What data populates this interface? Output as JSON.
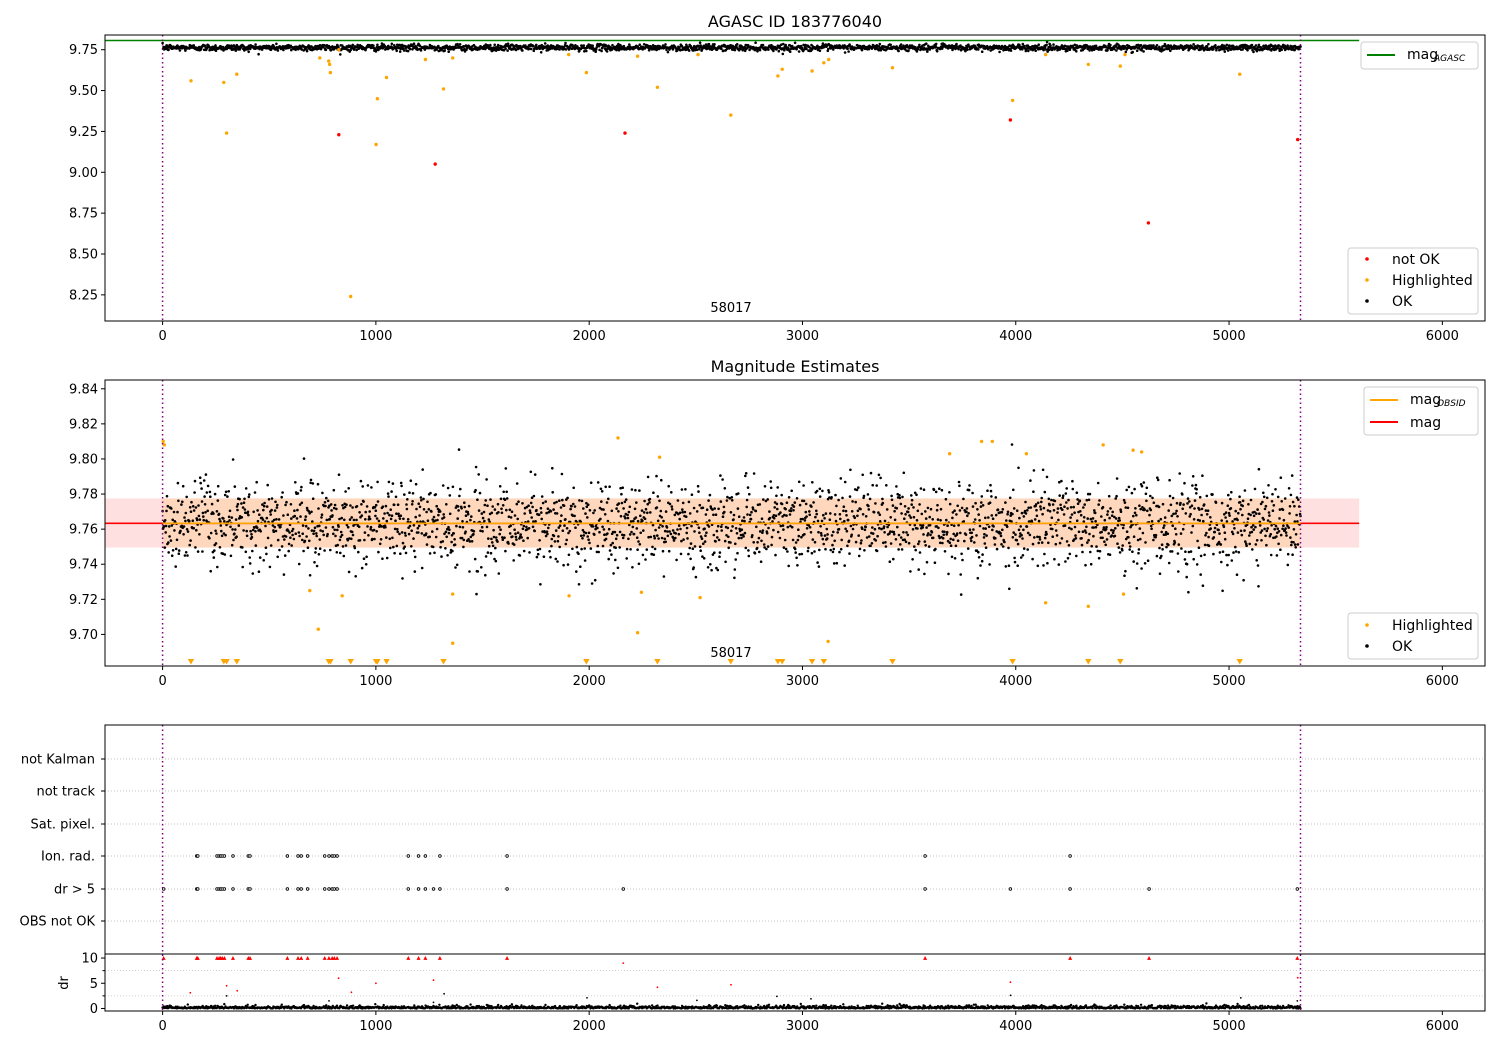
{
  "chart_data": [
    {
      "type": "scatter",
      "title": "AGASC ID 183776040",
      "xlim": [
        -270,
        6200
      ],
      "ylim": [
        8.09,
        9.84
      ],
      "xticks": [
        0,
        1000,
        2000,
        3000,
        4000,
        5000,
        6000
      ],
      "yticks": [
        8.25,
        8.5,
        8.75,
        9.0,
        9.25,
        9.5,
        9.75
      ],
      "ytick_labels": [
        "8.25",
        "8.50",
        "8.75",
        "9.00",
        "9.25",
        "9.50",
        "9.75"
      ],
      "grid": false,
      "obsid_bounds": [
        0,
        5335
      ],
      "obsid_label": {
        "text": "58017",
        "x": 2667
      },
      "reference_lines": [
        {
          "name": "mag",
          "subscript": "AGASC",
          "y": 9.806,
          "x": [
            -270,
            5610
          ],
          "color": "#008000"
        }
      ],
      "ok_band": {
        "x": [
          0,
          5335
        ],
        "center": 9.763,
        "spread": 0.01,
        "color": "#000000"
      },
      "series": [
        {
          "name": "not OK",
          "color": "#ff0000",
          "points": [
            [
              826,
              9.23
            ],
            [
              1278,
              9.05
            ],
            [
              2168,
              9.24
            ],
            [
              3975,
              9.32
            ],
            [
              4622,
              8.69
            ],
            [
              5322,
              9.2
            ]
          ]
        },
        {
          "name": "Highlighted",
          "color": "#ffa500",
          "points": [
            [
              133,
              9.56
            ],
            [
              287,
              9.55
            ],
            [
              300,
              9.24
            ],
            [
              348,
              9.6
            ],
            [
              737,
              9.7
            ],
            [
              779,
              9.68
            ],
            [
              783,
              9.66
            ],
            [
              787,
              9.61
            ],
            [
              826,
              9.75
            ],
            [
              882,
              8.24
            ],
            [
              1001,
              9.17
            ],
            [
              1007,
              9.45
            ],
            [
              1050,
              9.58
            ],
            [
              1232,
              9.69
            ],
            [
              1317,
              9.51
            ],
            [
              1360,
              9.7
            ],
            [
              1904,
              9.72
            ],
            [
              1987,
              9.61
            ],
            [
              2227,
              9.71
            ],
            [
              2320,
              9.52
            ],
            [
              2510,
              9.72
            ],
            [
              2664,
              9.35
            ],
            [
              2885,
              9.59
            ],
            [
              2905,
              9.63
            ],
            [
              3045,
              9.62
            ],
            [
              3100,
              9.67
            ],
            [
              3123,
              9.69
            ],
            [
              3422,
              9.64
            ],
            [
              3985,
              9.44
            ],
            [
              4140,
              9.72
            ],
            [
              4340,
              9.66
            ],
            [
              4490,
              9.65
            ],
            [
              4512,
              9.72
            ],
            [
              5050,
              9.6
            ]
          ]
        }
      ],
      "legends": [
        {
          "position": "top-right",
          "entries": [
            {
              "name": "mag",
              "subscript": "AGASC",
              "kind": "line",
              "color": "#008000"
            }
          ]
        },
        {
          "position": "lower-right",
          "entries": [
            {
              "name": "not OK",
              "kind": "marker",
              "color": "#ff0000"
            },
            {
              "name": "Highlighted",
              "kind": "marker",
              "color": "#ffa500"
            },
            {
              "name": "OK",
              "kind": "marker",
              "color": "#000000"
            }
          ]
        }
      ]
    },
    {
      "type": "scatter",
      "title": "Magnitude Estimates",
      "xlim": [
        -270,
        6200
      ],
      "ylim": [
        9.682,
        9.845
      ],
      "xticks": [
        0,
        1000,
        2000,
        3000,
        4000,
        5000,
        6000
      ],
      "yticks": [
        9.7,
        9.72,
        9.74,
        9.76,
        9.78,
        9.8,
        9.82,
        9.84
      ],
      "ytick_labels": [
        "9.70",
        "9.72",
        "9.74",
        "9.76",
        "9.78",
        "9.80",
        "9.82",
        "9.84"
      ],
      "grid": false,
      "obsid_bounds": [
        0,
        5335
      ],
      "obsid_label": {
        "text": "58017",
        "x": 2667
      },
      "bands": [
        {
          "x": [
            -270,
            5610
          ],
          "y": [
            9.7495,
            9.7775
          ],
          "color": "#ff0000",
          "opacity": 0.12
        },
        {
          "x": [
            0,
            5335
          ],
          "y": [
            9.7495,
            9.7775
          ],
          "color": "#ffa500",
          "opacity": 0.16
        }
      ],
      "reference_lines": [
        {
          "name": "mag",
          "y": 9.7633,
          "x": [
            -270,
            5610
          ],
          "color": "#ff0000"
        },
        {
          "name": "mag",
          "subscript": "OBSID",
          "y": 9.7633,
          "x": [
            0,
            5335
          ],
          "color": "#ffa500"
        }
      ],
      "ok_band": {
        "x": [
          0,
          5335
        ],
        "center": 9.763,
        "spread": 0.012,
        "color": "#000000"
      },
      "series": [
        {
          "name": "Highlighted",
          "color": "#ffa500",
          "points": [
            [
              3,
              9.81
            ],
            [
              8,
              9.808
            ],
            [
              690,
              9.725
            ],
            [
              730,
              9.703
            ],
            [
              842,
              9.722
            ],
            [
              1360,
              9.723
            ],
            [
              1360,
              9.695
            ],
            [
              1906,
              9.722
            ],
            [
              2135,
              9.812
            ],
            [
              2227,
              9.701
            ],
            [
              2245,
              9.724
            ],
            [
              2330,
              9.801
            ],
            [
              2520,
              9.721
            ],
            [
              3120,
              9.696
            ],
            [
              3690,
              9.803
            ],
            [
              3840,
              9.81
            ],
            [
              3890,
              9.81
            ],
            [
              4050,
              9.803
            ],
            [
              4140,
              9.718
            ],
            [
              4340,
              9.716
            ],
            [
              4410,
              9.808
            ],
            [
              4505,
              9.723
            ],
            [
              4550,
              9.805
            ],
            [
              4590,
              9.804
            ]
          ]
        },
        {
          "name": "Highlighted (below range)",
          "color": "#ffa500",
          "marker": "triangle-down",
          "x": [
            133,
            287,
            300,
            348,
            779,
            787,
            882,
            1001,
            1007,
            1050,
            1317,
            1987,
            2320,
            2664,
            2885,
            2905,
            3045,
            3100,
            3422,
            3985,
            4340,
            4490,
            5050
          ]
        }
      ],
      "legends": [
        {
          "position": "top-right",
          "entries": [
            {
              "name": "mag",
              "subscript": "OBSID",
              "kind": "line",
              "color": "#ffa500"
            },
            {
              "name": "mag",
              "kind": "line",
              "color": "#ff0000"
            }
          ]
        },
        {
          "position": "lower-right",
          "entries": [
            {
              "name": "Highlighted",
              "kind": "marker",
              "color": "#ffa500"
            },
            {
              "name": "OK",
              "kind": "marker",
              "color": "#000000"
            }
          ]
        }
      ]
    },
    {
      "type": "scatter",
      "title": "",
      "xlim": [
        -270,
        6200
      ],
      "xticks": [
        0,
        1000,
        2000,
        3000,
        4000,
        5000,
        6000
      ],
      "obsid_bounds": [
        0,
        5335
      ],
      "flag_rows": [
        "not Kalman",
        "not track",
        "Sat. pixel.",
        "Ion. rad.",
        "dr > 5",
        "OBS not OK"
      ],
      "flags": {
        "Ion. rad.": [
          160,
          165,
          255,
          265,
          272,
          280,
          290,
          330,
          402,
          410,
          585,
          635,
          650,
          680,
          760,
          780,
          795,
          805,
          818,
          1152,
          1200,
          1232,
          1300,
          1615,
          3575,
          4255
        ],
        "dr > 5": [
          5,
          160,
          165,
          255,
          265,
          272,
          280,
          290,
          330,
          402,
          410,
          585,
          635,
          650,
          680,
          760,
          780,
          795,
          805,
          818,
          1152,
          1200,
          1232,
          1270,
          1300,
          1615,
          2160,
          3575,
          3975,
          4255,
          4625,
          5320
        ]
      },
      "dr_panel": {
        "ylabel": "dr",
        "ylim": [
          -0.5,
          10.8
        ],
        "yticks": [
          0,
          5,
          10
        ],
        "ytick_labels": [
          "0",
          "5",
          "10"
        ],
        "capped": [
          5,
          160,
          165,
          255,
          265,
          272,
          280,
          290,
          330,
          402,
          410,
          585,
          635,
          650,
          680,
          760,
          780,
          795,
          805,
          818,
          1152,
          1200,
          1232,
          1300,
          1615,
          3575,
          4255,
          4625,
          5320
        ],
        "red_points": [
          [
            130,
            3.1
          ],
          [
            300,
            4.5
          ],
          [
            350,
            3.5
          ],
          [
            825,
            6
          ],
          [
            885,
            3.2
          ],
          [
            1000,
            5
          ],
          [
            1270,
            5.6
          ],
          [
            2160,
            9
          ],
          [
            2320,
            4.2
          ],
          [
            2665,
            4.7
          ],
          [
            3975,
            5.2
          ],
          [
            5322,
            6.1
          ]
        ],
        "black_points": [
          [
            300,
            2.5
          ],
          [
            780,
            1.5
          ],
          [
            1270,
            1.2
          ],
          [
            1320,
            2.9
          ],
          [
            1990,
            2.1
          ],
          [
            2505,
            1.6
          ],
          [
            2880,
            2.4
          ],
          [
            3040,
            1.9
          ],
          [
            3976,
            2.6
          ],
          [
            5055,
            2.1
          ],
          [
            5320,
            1.5
          ]
        ]
      }
    }
  ]
}
